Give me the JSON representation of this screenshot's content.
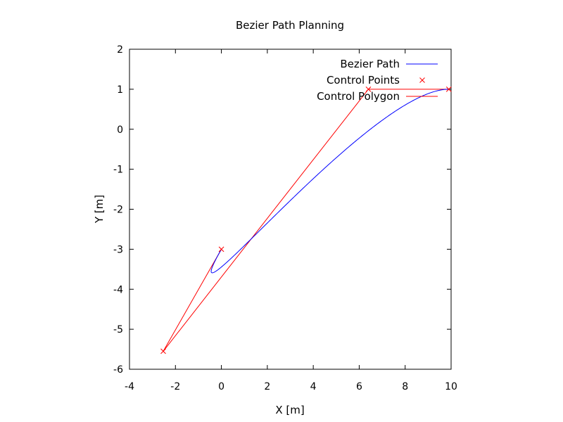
{
  "chart_data": {
    "type": "line",
    "title": "Bezier Path Planning",
    "xlabel": "X [m]",
    "ylabel": "Y [m]",
    "xlim": [
      -4,
      10
    ],
    "ylim": [
      -6,
      2
    ],
    "xticks": [
      -4,
      -2,
      0,
      2,
      4,
      6,
      8,
      10
    ],
    "yticks": [
      -6,
      -5,
      -4,
      -3,
      -2,
      -1,
      0,
      1,
      2
    ],
    "grid": false,
    "legend_position": "top-right",
    "control_points": [
      {
        "x": 0.0,
        "y": -3.0
      },
      {
        "x": -2.53,
        "y": -5.55
      },
      {
        "x": 6.4,
        "y": 1.0
      },
      {
        "x": 9.9,
        "y": 1.0
      }
    ],
    "series": [
      {
        "name": "Bezier Path",
        "kind": "bezier-curve",
        "color": "#0000ff"
      },
      {
        "name": "Control Points",
        "kind": "points",
        "marker": "x",
        "color": "#ff0000"
      },
      {
        "name": "Control Polygon",
        "kind": "polyline",
        "color": "#ff0000"
      }
    ]
  }
}
